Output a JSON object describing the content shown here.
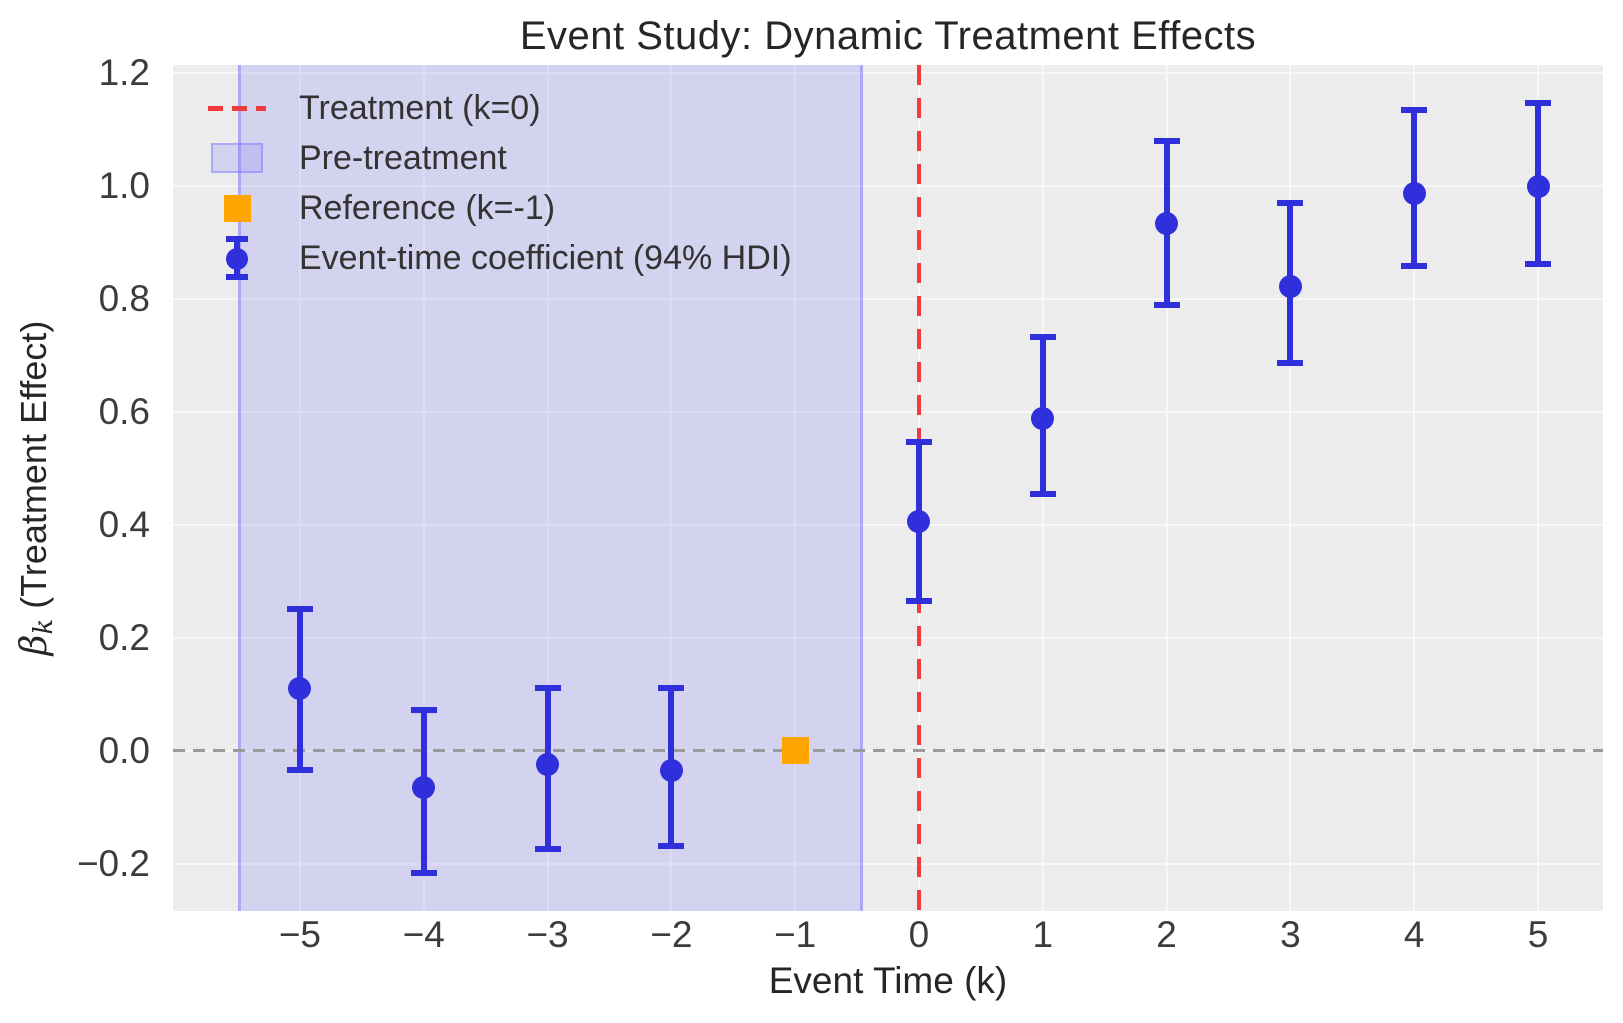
{
  "figure": {
    "title": "Event Study: Dynamic Treatment Effects",
    "xlabel": "Event Time (k)",
    "ylabel": {
      "beta": "β",
      "sub": "k",
      "rest": " (Treatment Effect)"
    }
  },
  "legend": {
    "items": [
      {
        "label": "Treatment (k=0)",
        "type": "dashed-line"
      },
      {
        "label": "Pre-treatment",
        "type": "patch"
      },
      {
        "label": "Reference (k=-1)",
        "type": "square"
      },
      {
        "label": "Event-time coefficient (94% HDI)",
        "type": "errorbar"
      }
    ]
  },
  "colors": {
    "coefficient_blue": "#2f2fdc",
    "treatment_line_red": "#f23b3b",
    "reference_orange": "#ffa500",
    "pretreatment_band_fill": "rgba(121,116,255,0.20)",
    "pretreatment_band_edge": "rgba(121,116,255,0.45)",
    "zero_line_gray": "#9a9a9a",
    "plot_background": "#ececec",
    "gridline": "#f7f7f7"
  },
  "chart_data": {
    "type": "scatter",
    "title": "Event Study: Dynamic Treatment Effects",
    "xlabel": "Event Time (k)",
    "ylabel": "β_k (Treatment Effect)",
    "xlim": [
      -6.025,
      5.525
    ],
    "ylim": [
      -0.284,
      1.215
    ],
    "grid": true,
    "legend_position": "upper left",
    "x_ticks": [
      {
        "value": -5,
        "label": "−5"
      },
      {
        "value": -4,
        "label": "−4"
      },
      {
        "value": -3,
        "label": "−3"
      },
      {
        "value": -2,
        "label": "−2"
      },
      {
        "value": -1,
        "label": "−1"
      },
      {
        "value": 0,
        "label": "0"
      },
      {
        "value": 1,
        "label": "1"
      },
      {
        "value": 2,
        "label": "2"
      },
      {
        "value": 3,
        "label": "3"
      },
      {
        "value": 4,
        "label": "4"
      },
      {
        "value": 5,
        "label": "5"
      }
    ],
    "y_ticks": [
      {
        "value": -0.2,
        "label": "−0.2"
      },
      {
        "value": 0.0,
        "label": "0.0"
      },
      {
        "value": 0.2,
        "label": "0.2"
      },
      {
        "value": 0.4,
        "label": "0.4"
      },
      {
        "value": 0.6,
        "label": "0.6"
      },
      {
        "value": 0.8,
        "label": "0.8"
      },
      {
        "value": 1.0,
        "label": "1.0"
      },
      {
        "value": 1.2,
        "label": "1.2"
      }
    ],
    "series": [
      {
        "name": "Event-time coefficient (94% HDI)",
        "points": [
          {
            "k": -5,
            "coef": 0.111,
            "hdi_low": -0.034,
            "hdi_high": 0.251
          },
          {
            "k": -4,
            "coef": -0.066,
            "hdi_low": -0.216,
            "hdi_high": 0.073
          },
          {
            "k": -3,
            "coef": -0.025,
            "hdi_low": -0.174,
            "hdi_high": 0.111
          },
          {
            "k": -2,
            "coef": -0.035,
            "hdi_low": -0.168,
            "hdi_high": 0.112
          },
          {
            "k": 0,
            "coef": 0.406,
            "hdi_low": 0.265,
            "hdi_high": 0.547
          },
          {
            "k": 1,
            "coef": 0.589,
            "hdi_low": 0.455,
            "hdi_high": 0.733
          },
          {
            "k": 2,
            "coef": 0.934,
            "hdi_low": 0.789,
            "hdi_high": 1.08
          },
          {
            "k": 3,
            "coef": 0.823,
            "hdi_low": 0.687,
            "hdi_high": 0.97
          },
          {
            "k": 4,
            "coef": 0.988,
            "hdi_low": 0.858,
            "hdi_high": 1.135
          },
          {
            "k": 5,
            "coef": 1.0,
            "hdi_low": 0.862,
            "hdi_high": 1.147
          }
        ]
      }
    ],
    "reference_point": {
      "k": -1,
      "coef": 0.0
    },
    "pretreatment_band": {
      "x_from": -5.5,
      "x_to": -0.5
    },
    "treatment_line_x": 0,
    "zero_line_y": 0
  }
}
